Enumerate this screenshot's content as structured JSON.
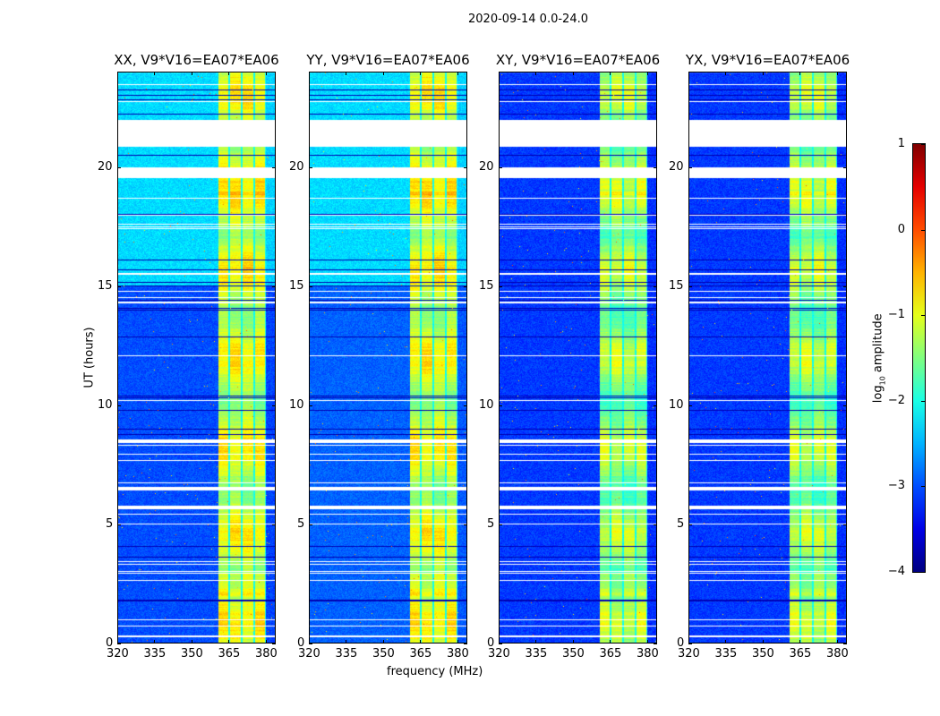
{
  "suptitle": "2020-09-14 0.0-24.0",
  "xlabel": "frequency (MHz)",
  "ylabel": "UT (hours)",
  "colorbar": {
    "label_prefix": "log",
    "label_sub": "10",
    "label_suffix": " amplitude",
    "range": [
      -4,
      1
    ],
    "ticks": [
      "−4",
      "−3",
      "−2",
      "−1",
      "0",
      "1"
    ],
    "tick_values": [
      -4,
      -3,
      -2,
      -1,
      0,
      1
    ],
    "colormap": "jet"
  },
  "chart_data": [
    {
      "type": "heatmap",
      "title": "XX, V9*V16=EA07*EA06",
      "xlim": [
        320,
        384
      ],
      "ylim": [
        0,
        24
      ],
      "background_level_late": -2.3,
      "background_level_early": -3.0
    },
    {
      "type": "heatmap",
      "title": "YY, V9*V16=EA07*EA06",
      "xlim": [
        320,
        384
      ],
      "ylim": [
        0,
        24
      ],
      "background_level_late": -2.3,
      "background_level_early": -2.9
    },
    {
      "type": "heatmap",
      "title": "XY, V9*V16=EA07*EA06",
      "xlim": [
        320,
        384
      ],
      "ylim": [
        0,
        24
      ],
      "background_level_late": -3.1,
      "background_level_early": -3.1
    },
    {
      "type": "heatmap",
      "title": "YX, V9*V16=EA07*EA06",
      "xlim": [
        320,
        384
      ],
      "ylim": [
        0,
        24
      ],
      "background_level_late": -3.1,
      "background_level_early": -3.1
    }
  ],
  "shared": {
    "xticks": [
      320,
      335,
      350,
      365,
      380
    ],
    "yticks": [
      0,
      5,
      10,
      15,
      20
    ],
    "signal_band_mhz": [
      360.5,
      380
    ],
    "channel_gaps_mhz": [
      365,
      370,
      375,
      380
    ],
    "signal_level": -1.1,
    "flagged_hours": [
      [
        20.85,
        22.0
      ],
      [
        19.55,
        20.0
      ],
      [
        5.65,
        5.8
      ],
      [
        6.45,
        6.6
      ],
      [
        8.45,
        8.55
      ],
      [
        0.3,
        0.35
      ],
      [
        15.5,
        15.55
      ],
      [
        14.3,
        14.35
      ]
    ]
  }
}
